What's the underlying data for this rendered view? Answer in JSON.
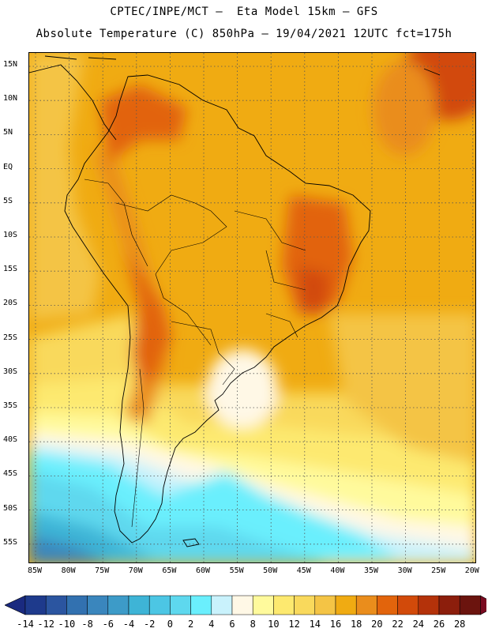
{
  "header": {
    "line1": "CPTEC/INPE/MCT –  Eta Model 15km – GFS",
    "line2": "Absolute Temperature (C) 850hPa – 19/04/2021 12UTC fct=175h"
  },
  "map": {
    "lat_labels": [
      "15N",
      "10N",
      "5N",
      "EQ",
      "5S",
      "10S",
      "15S",
      "20S",
      "25S",
      "30S",
      "35S",
      "40S",
      "45S",
      "50S",
      "55S"
    ],
    "lon_labels": [
      "85W",
      "80W",
      "75W",
      "70W",
      "65W",
      "60W",
      "55W",
      "50W",
      "45W",
      "40W",
      "35W",
      "30W",
      "25W",
      "20W"
    ],
    "grid": "dotted"
  },
  "colorbar": {
    "labels": [
      "-14",
      "-12",
      "-10",
      "-8",
      "-6",
      "-4",
      "-2",
      "0",
      "2",
      "4",
      "6",
      "8",
      "10",
      "12",
      "14",
      "16",
      "18",
      "20",
      "22",
      "24",
      "26",
      "28"
    ],
    "colors": [
      "#1e3a8c",
      "#2b55a0",
      "#3271b0",
      "#3a86bd",
      "#3d9bc8",
      "#3eb4d6",
      "#4cc6e4",
      "#5ed8ee",
      "#6aeffd",
      "#c9f2fc",
      "#fff8e6",
      "#fffa9c",
      "#fde96f",
      "#f9d95c",
      "#f4c445",
      "#f0ab12",
      "#ea8d1c",
      "#e2640c",
      "#d24a0a",
      "#b4320a",
      "#8c1e0c",
      "#6b140e"
    ],
    "low_arrow_color": "#1a2a80",
    "high_arrow_color": "#7a0a20"
  }
}
